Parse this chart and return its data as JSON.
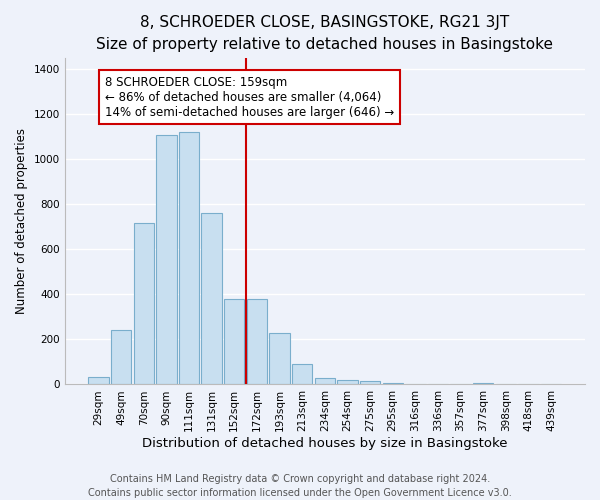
{
  "title": "8, SCHROEDER CLOSE, BASINGSTOKE, RG21 3JT",
  "subtitle": "Size of property relative to detached houses in Basingstoke",
  "xlabel": "Distribution of detached houses by size in Basingstoke",
  "ylabel": "Number of detached properties",
  "bar_labels": [
    "29sqm",
    "49sqm",
    "70sqm",
    "90sqm",
    "111sqm",
    "131sqm",
    "152sqm",
    "172sqm",
    "193sqm",
    "213sqm",
    "234sqm",
    "254sqm",
    "275sqm",
    "295sqm",
    "316sqm",
    "336sqm",
    "357sqm",
    "377sqm",
    "398sqm",
    "418sqm",
    "439sqm"
  ],
  "bar_values": [
    35,
    243,
    718,
    1105,
    1120,
    762,
    380,
    377,
    228,
    90,
    30,
    20,
    15,
    5,
    0,
    0,
    0,
    5,
    0,
    0,
    0
  ],
  "bar_color": "#c8dff0",
  "bar_edge_color": "#7aaecc",
  "vline_color": "#cc0000",
  "annotation_text": "8 SCHROEDER CLOSE: 159sqm\n← 86% of detached houses are smaller (4,064)\n14% of semi-detached houses are larger (646) →",
  "annotation_box_color": "#ffffff",
  "annotation_box_edge": "#cc0000",
  "ylim": [
    0,
    1450
  ],
  "yticks": [
    0,
    200,
    400,
    600,
    800,
    1000,
    1200,
    1400
  ],
  "footer1": "Contains HM Land Registry data © Crown copyright and database right 2024.",
  "footer2": "Contains public sector information licensed under the Open Government Licence v3.0.",
  "background_color": "#eef2fa",
  "grid_color": "#ffffff",
  "title_fontsize": 11,
  "xlabel_fontsize": 9.5,
  "ylabel_fontsize": 8.5,
  "tick_fontsize": 7.5,
  "annotation_fontsize": 8.5,
  "footer_fontsize": 7
}
